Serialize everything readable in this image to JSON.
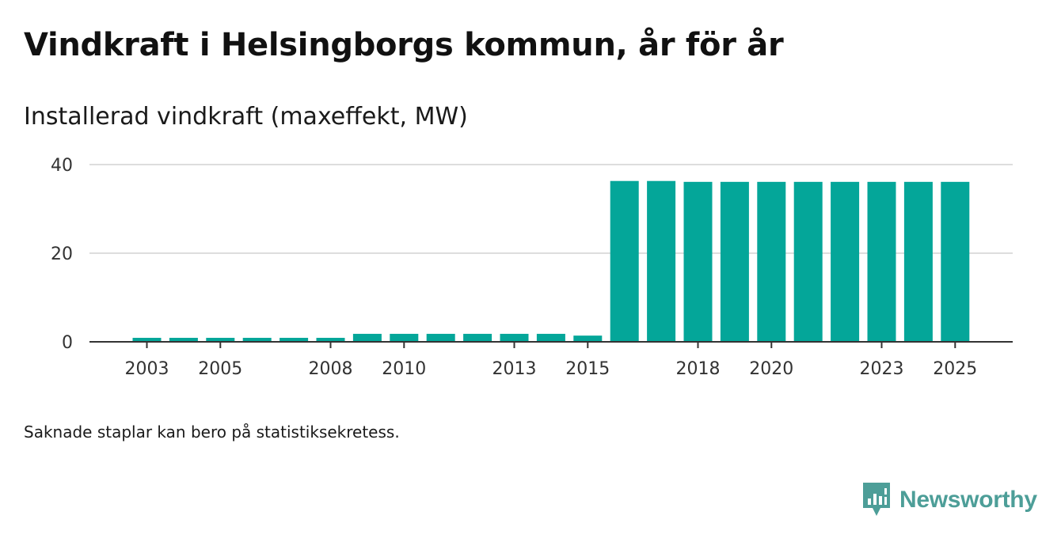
{
  "header": {
    "title": "Vindkraft i Helsingborgs kommun, år för år",
    "subtitle": "Installerad vindkraft (maxeffekt, MW)"
  },
  "footer": {
    "note": "Saknade staplar kan bero på statistiksekretess.",
    "brand": "Newsworthy"
  },
  "colors": {
    "bar": "#04a699",
    "grid": "#dddddd",
    "axis": "#333333",
    "brand": "#4d9e98"
  },
  "chart_data": {
    "type": "bar",
    "title": "Vindkraft i Helsingborgs kommun, år för år",
    "ylabel": "Installerad vindkraft (maxeffekt, MW)",
    "xlabel": "",
    "ylim": [
      0,
      40
    ],
    "yticks": [
      0,
      20,
      40
    ],
    "categories": [
      "2003",
      "2004",
      "2005",
      "2006",
      "2007",
      "2008",
      "2009",
      "2010",
      "2011",
      "2012",
      "2013",
      "2014",
      "2015",
      "2016",
      "2017",
      "2018",
      "2019",
      "2020",
      "2021",
      "2022",
      "2023",
      "2024",
      "2025"
    ],
    "xtick_labels": [
      "2003",
      "2005",
      "2008",
      "2010",
      "2013",
      "2015",
      "2018",
      "2020",
      "2023",
      "2025"
    ],
    "values": [
      0.9,
      0.9,
      0.9,
      0.9,
      0.9,
      0.9,
      1.8,
      1.8,
      1.8,
      1.8,
      1.8,
      1.8,
      1.4,
      36.3,
      36.3,
      36.1,
      36.1,
      36.1,
      36.1,
      36.1,
      36.1,
      36.1,
      36.1
    ],
    "grid": true,
    "legend": "none"
  }
}
